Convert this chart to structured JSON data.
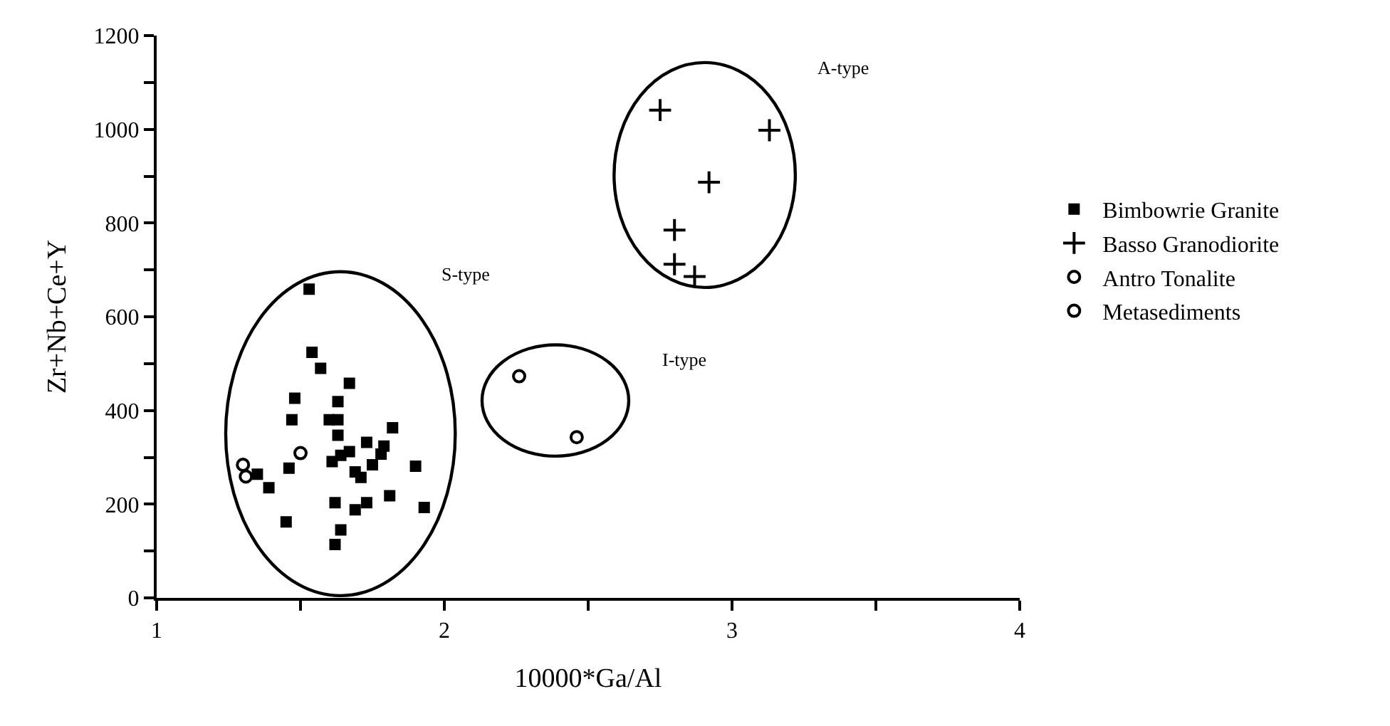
{
  "chart_data": {
    "type": "scatter",
    "xlabel": "10000*Ga/Al",
    "ylabel": "Zr+Nb+Ce+Y",
    "xlim": [
      1,
      4
    ],
    "xticks": [
      1,
      {
        "value": 1.5,
        "label": null
      },
      2,
      {
        "value": 2.5,
        "label": null
      },
      3,
      {
        "value": 3.5,
        "label": null
      },
      4
    ],
    "ylim": [
      0,
      1200
    ],
    "yticks": [
      0,
      {
        "value": 100,
        "label": null
      },
      200,
      {
        "value": 300,
        "label": null
      },
      400,
      {
        "value": 500,
        "label": null
      },
      600,
      {
        "value": 700,
        "label": null
      },
      800,
      {
        "value": 900,
        "label": null
      },
      1000,
      {
        "value": 1100,
        "label": null
      },
      1200
    ],
    "grid": false,
    "legend": "right",
    "series": [
      {
        "name": "Bimbowrie Granite",
        "color": "#000000",
        "marker": "square",
        "x": [
          1.53,
          1.54,
          1.57,
          1.67,
          1.48,
          1.63,
          1.47,
          1.6,
          1.63,
          1.82,
          1.63,
          1.73,
          1.79,
          1.78,
          1.67,
          1.64,
          1.61,
          1.75,
          1.9,
          1.46,
          1.69,
          1.71,
          1.35,
          1.39,
          1.81,
          1.62,
          1.73,
          1.69,
          1.93,
          1.45,
          1.64,
          1.62
        ],
        "values": [
          659,
          524,
          490,
          458,
          426,
          419,
          380,
          380,
          380,
          363,
          347,
          332,
          324,
          307,
          312,
          304,
          291,
          284,
          281,
          277,
          269,
          257,
          264,
          235,
          218,
          203,
          203,
          188,
          193,
          162,
          145,
          114
        ]
      },
      {
        "name": "Basso Granodiorite",
        "color": "#000000",
        "marker": "cross",
        "x": [
          2.75,
          3.13,
          2.92,
          2.8,
          2.8,
          2.87
        ],
        "values": [
          1041,
          998,
          887,
          785,
          712,
          686
        ]
      },
      {
        "name": "Antro Tonalite",
        "color": "#000000",
        "marker": "circle",
        "x": [
          2.26,
          2.46
        ],
        "values": [
          473,
          343
        ]
      },
      {
        "name": "Metasediments",
        "color": "#000000",
        "marker": "circle",
        "x": [
          1.3,
          1.31,
          1.5
        ],
        "values": [
          284,
          259,
          309
        ]
      }
    ],
    "annotations": [
      "S-type",
      "I-type",
      "A-type"
    ]
  }
}
